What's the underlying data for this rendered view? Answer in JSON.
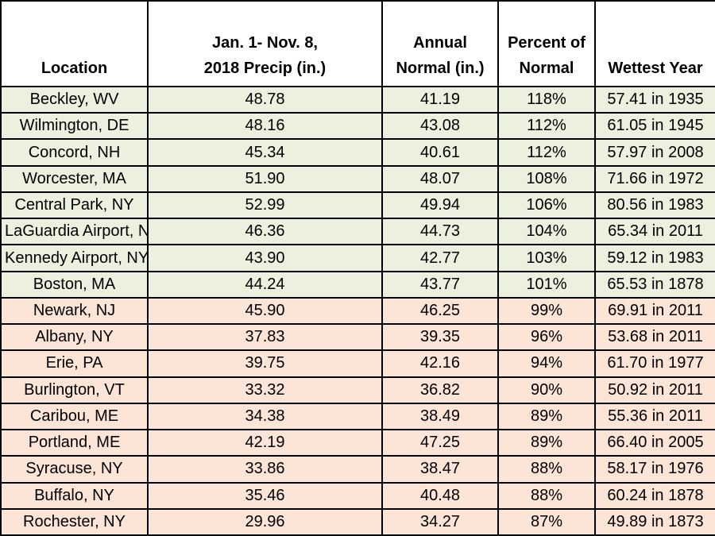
{
  "table": {
    "header": [
      [
        "Location"
      ],
      [
        "Jan. 1- Nov. 8,",
        "2018 Precip (in.)"
      ],
      [
        "Annual",
        "Normal (in.)"
      ],
      [
        "Percent of",
        "Normal"
      ],
      [
        "Wettest Year"
      ]
    ],
    "groups": [
      {
        "color": "#ebf1de",
        "rows": [
          [
            "Beckley, WV",
            "48.78",
            "41.19",
            "118%",
            "57.41 in 1935"
          ],
          [
            "Wilmington, DE",
            "48.16",
            "43.08",
            "112%",
            "61.05 in 1945"
          ],
          [
            "Concord, NH",
            "45.34",
            "40.61",
            "112%",
            "57.97 in 2008"
          ],
          [
            "Worcester, MA",
            "51.90",
            "48.07",
            "108%",
            "71.66 in 1972"
          ],
          [
            "Central Park, NY",
            "52.99",
            "49.94",
            "106%",
            "80.56 in 1983"
          ],
          [
            "LaGuardia Airport, NY",
            "46.36",
            "44.73",
            "104%",
            "65.34 in 2011"
          ],
          [
            "Kennedy Airport, NY",
            "43.90",
            "42.77",
            "103%",
            "59.12 in 1983"
          ],
          [
            "Boston, MA",
            "44.24",
            "43.77",
            "101%",
            "65.53 in 1878"
          ]
        ]
      },
      {
        "color": "#fce4d6",
        "rows": [
          [
            "Newark, NJ",
            "45.90",
            "46.25",
            "99%",
            "69.91 in 2011"
          ],
          [
            "Albany, NY",
            "37.83",
            "39.35",
            "96%",
            "53.68 in 2011"
          ],
          [
            "Erie, PA",
            "39.75",
            "42.16",
            "94%",
            "61.70 in 1977"
          ],
          [
            "Burlington, VT",
            "33.32",
            "36.82",
            "90%",
            "50.92 in 2011"
          ],
          [
            "Caribou, ME",
            "34.38",
            "38.49",
            "89%",
            "55.36 in 2011"
          ],
          [
            "Portland, ME",
            "42.19",
            "47.25",
            "89%",
            "66.40 in 2005"
          ],
          [
            "Syracuse, NY",
            "33.86",
            "38.47",
            "88%",
            "58.17 in 1976"
          ],
          [
            "Buffalo, NY",
            "35.46",
            "40.48",
            "88%",
            "60.24 in 1878"
          ],
          [
            "Rochester, NY",
            "29.96",
            "34.27",
            "87%",
            "49.89 in 1873"
          ]
        ]
      }
    ]
  }
}
